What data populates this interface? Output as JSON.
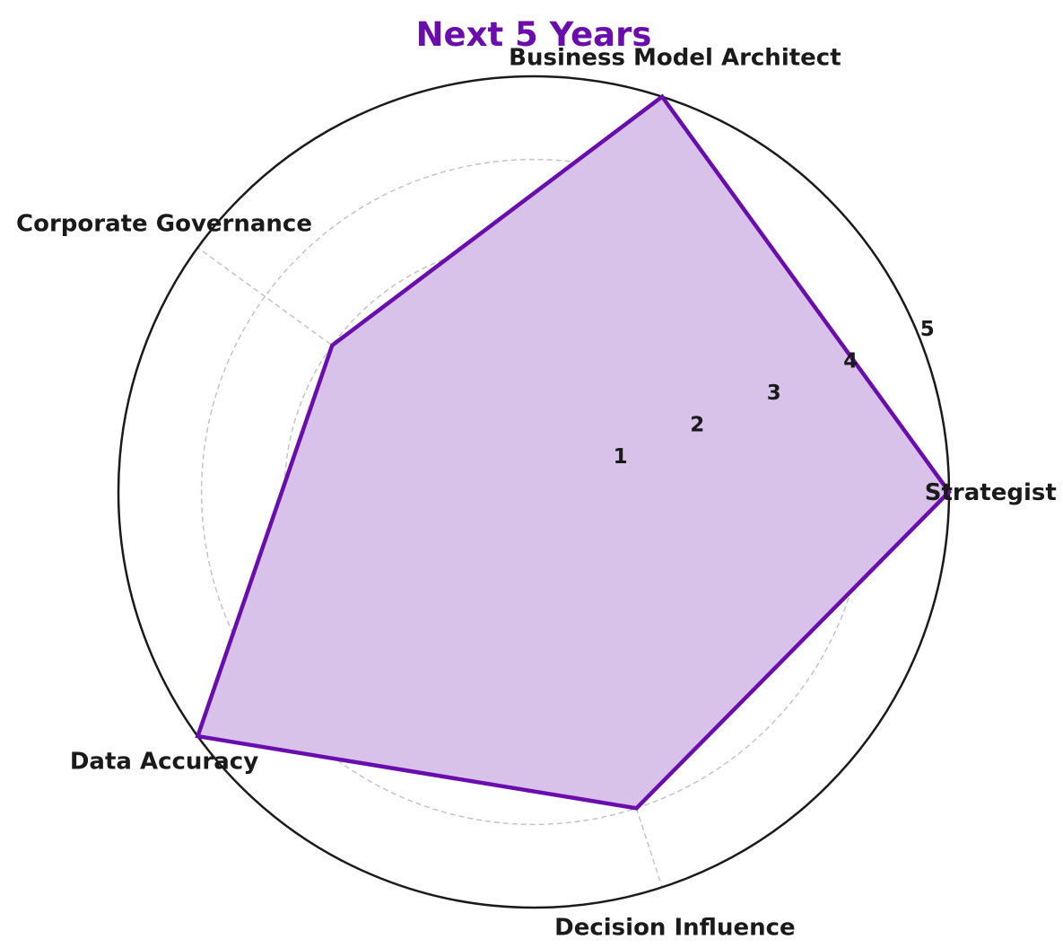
{
  "chart_data": {
    "type": "radar",
    "title": "Next 5 Years",
    "categories": [
      "Strategist",
      "Business Model Architect",
      "Corporate Governance",
      "Data Accuracy",
      "Decision Influence"
    ],
    "series": [
      {
        "values": [
          5,
          5,
          3,
          5,
          4
        ]
      }
    ],
    "rlim": [
      0,
      5
    ],
    "r_ticks": [
      "1",
      "2",
      "3",
      "4",
      "5"
    ],
    "grid": true,
    "colors": {
      "line": "#6a0dad",
      "fill": "#d9c2ea",
      "title": "#6a0dad"
    }
  }
}
